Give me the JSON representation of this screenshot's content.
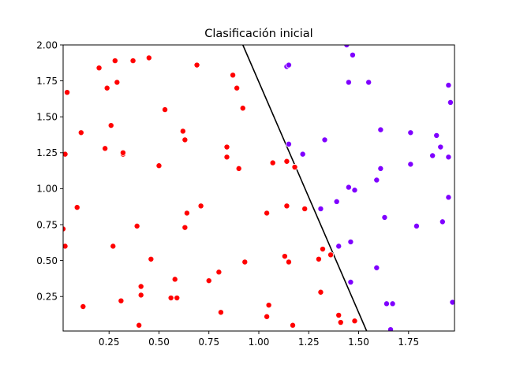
{
  "chart_data": {
    "type": "scatter",
    "title": "Clasificación inicial",
    "xlabel": "",
    "ylabel": "",
    "xlim": [
      0.02,
      1.98
    ],
    "ylim": [
      0.01,
      2.0
    ],
    "x_ticks": [
      0.25,
      0.5,
      0.75,
      1.0,
      1.25,
      1.5,
      1.75
    ],
    "x_tick_labels": [
      "0.25",
      "0.50",
      "0.75",
      "1.00",
      "1.25",
      "1.50",
      "1.75"
    ],
    "y_ticks": [
      0.25,
      0.5,
      0.75,
      1.0,
      1.25,
      1.5,
      1.75,
      2.0
    ],
    "y_tick_labels": [
      "0.25",
      "0.50",
      "0.75",
      "1.00",
      "1.25",
      "1.50",
      "1.75",
      "2.00"
    ],
    "grid": false,
    "line": {
      "points": [
        [
          0.92,
          2.0
        ],
        [
          1.54,
          0.01
        ]
      ],
      "color": "#000000"
    },
    "series": [
      {
        "color": "#ff0000",
        "points": [
          [
            0.04,
            1.67
          ],
          [
            0.03,
            1.24
          ],
          [
            0.02,
            0.72
          ],
          [
            0.03,
            0.6
          ],
          [
            0.09,
            0.87
          ],
          [
            0.11,
            1.39
          ],
          [
            0.12,
            0.18
          ],
          [
            0.2,
            1.84
          ],
          [
            0.24,
            1.7
          ],
          [
            0.23,
            1.28
          ],
          [
            0.26,
            1.44
          ],
          [
            0.27,
            0.6
          ],
          [
            0.28,
            1.89
          ],
          [
            0.29,
            1.74
          ],
          [
            0.31,
            0.22
          ],
          [
            0.32,
            1.24
          ],
          [
            0.32,
            1.25
          ],
          [
            0.37,
            1.89
          ],
          [
            0.39,
            0.74
          ],
          [
            0.4,
            0.05
          ],
          [
            0.41,
            0.32
          ],
          [
            0.41,
            0.26
          ],
          [
            0.45,
            1.91
          ],
          [
            0.46,
            0.51
          ],
          [
            0.5,
            1.16
          ],
          [
            0.53,
            1.55
          ],
          [
            0.56,
            0.24
          ],
          [
            0.58,
            0.37
          ],
          [
            0.59,
            0.24
          ],
          [
            0.62,
            1.4
          ],
          [
            0.63,
            1.34
          ],
          [
            0.63,
            0.73
          ],
          [
            0.64,
            0.83
          ],
          [
            0.69,
            1.86
          ],
          [
            0.71,
            0.88
          ],
          [
            0.75,
            0.36
          ],
          [
            0.8,
            0.42
          ],
          [
            0.81,
            0.14
          ],
          [
            0.84,
            1.29
          ],
          [
            0.84,
            1.22
          ],
          [
            0.87,
            1.79
          ],
          [
            0.89,
            1.7
          ],
          [
            0.9,
            1.14
          ],
          [
            0.92,
            1.56
          ],
          [
            0.93,
            0.49
          ],
          [
            1.04,
            0.83
          ],
          [
            1.04,
            0.11
          ],
          [
            1.05,
            0.19
          ],
          [
            1.07,
            1.18
          ],
          [
            1.14,
            1.19
          ],
          [
            1.14,
            0.88
          ],
          [
            1.13,
            0.53
          ],
          [
            1.15,
            0.49
          ],
          [
            1.17,
            0.05
          ],
          [
            1.18,
            1.15
          ],
          [
            1.23,
            0.86
          ],
          [
            1.3,
            0.51
          ],
          [
            1.31,
            0.28
          ],
          [
            1.32,
            0.58
          ],
          [
            1.36,
            0.54
          ],
          [
            1.4,
            0.12
          ],
          [
            1.41,
            0.07
          ],
          [
            1.48,
            0.08
          ]
        ]
      },
      {
        "color": "#7f00ff",
        "points": [
          [
            1.14,
            1.85
          ],
          [
            1.15,
            1.86
          ],
          [
            1.15,
            1.31
          ],
          [
            1.22,
            1.24
          ],
          [
            1.31,
            0.86
          ],
          [
            1.33,
            1.34
          ],
          [
            1.39,
            0.91
          ],
          [
            1.4,
            0.6
          ],
          [
            1.44,
            2.0
          ],
          [
            1.45,
            1.74
          ],
          [
            1.45,
            1.01
          ],
          [
            1.46,
            0.63
          ],
          [
            1.46,
            0.35
          ],
          [
            1.47,
            1.93
          ],
          [
            1.48,
            0.99
          ],
          [
            1.55,
            1.74
          ],
          [
            1.59,
            1.06
          ],
          [
            1.59,
            0.45
          ],
          [
            1.61,
            1.41
          ],
          [
            1.61,
            1.14
          ],
          [
            1.63,
            0.8
          ],
          [
            1.64,
            0.2
          ],
          [
            1.66,
            0.02
          ],
          [
            1.67,
            0.2
          ],
          [
            1.76,
            1.39
          ],
          [
            1.76,
            1.17
          ],
          [
            1.79,
            0.74
          ],
          [
            1.87,
            1.23
          ],
          [
            1.89,
            1.37
          ],
          [
            1.91,
            1.29
          ],
          [
            1.92,
            0.77
          ],
          [
            1.95,
            1.72
          ],
          [
            1.95,
            1.22
          ],
          [
            1.95,
            0.94
          ],
          [
            1.96,
            1.6
          ],
          [
            1.97,
            0.21
          ]
        ]
      }
    ]
  }
}
